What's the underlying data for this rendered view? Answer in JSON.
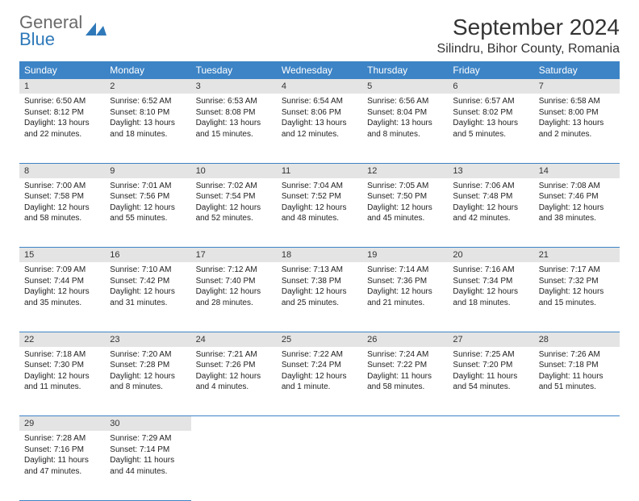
{
  "logo": {
    "line1": "General",
    "line2": "Blue"
  },
  "title": "September 2024",
  "location": "Silindru, Bihor County, Romania",
  "colors": {
    "header_bg": "#3d84c6",
    "header_text": "#ffffff",
    "daynum_bg": "#e4e4e4",
    "border": "#3d84c6",
    "logo_gray": "#6a6a6a",
    "logo_blue": "#2f79b9",
    "body_text": "#222222"
  },
  "weekdays": [
    "Sunday",
    "Monday",
    "Tuesday",
    "Wednesday",
    "Thursday",
    "Friday",
    "Saturday"
  ],
  "weeks": [
    [
      {
        "n": "1",
        "sr": "Sunrise: 6:50 AM",
        "ss": "Sunset: 8:12 PM",
        "d1": "Daylight: 13 hours",
        "d2": "and 22 minutes."
      },
      {
        "n": "2",
        "sr": "Sunrise: 6:52 AM",
        "ss": "Sunset: 8:10 PM",
        "d1": "Daylight: 13 hours",
        "d2": "and 18 minutes."
      },
      {
        "n": "3",
        "sr": "Sunrise: 6:53 AM",
        "ss": "Sunset: 8:08 PM",
        "d1": "Daylight: 13 hours",
        "d2": "and 15 minutes."
      },
      {
        "n": "4",
        "sr": "Sunrise: 6:54 AM",
        "ss": "Sunset: 8:06 PM",
        "d1": "Daylight: 13 hours",
        "d2": "and 12 minutes."
      },
      {
        "n": "5",
        "sr": "Sunrise: 6:56 AM",
        "ss": "Sunset: 8:04 PM",
        "d1": "Daylight: 13 hours",
        "d2": "and 8 minutes."
      },
      {
        "n": "6",
        "sr": "Sunrise: 6:57 AM",
        "ss": "Sunset: 8:02 PM",
        "d1": "Daylight: 13 hours",
        "d2": "and 5 minutes."
      },
      {
        "n": "7",
        "sr": "Sunrise: 6:58 AM",
        "ss": "Sunset: 8:00 PM",
        "d1": "Daylight: 13 hours",
        "d2": "and 2 minutes."
      }
    ],
    [
      {
        "n": "8",
        "sr": "Sunrise: 7:00 AM",
        "ss": "Sunset: 7:58 PM",
        "d1": "Daylight: 12 hours",
        "d2": "and 58 minutes."
      },
      {
        "n": "9",
        "sr": "Sunrise: 7:01 AM",
        "ss": "Sunset: 7:56 PM",
        "d1": "Daylight: 12 hours",
        "d2": "and 55 minutes."
      },
      {
        "n": "10",
        "sr": "Sunrise: 7:02 AM",
        "ss": "Sunset: 7:54 PM",
        "d1": "Daylight: 12 hours",
        "d2": "and 52 minutes."
      },
      {
        "n": "11",
        "sr": "Sunrise: 7:04 AM",
        "ss": "Sunset: 7:52 PM",
        "d1": "Daylight: 12 hours",
        "d2": "and 48 minutes."
      },
      {
        "n": "12",
        "sr": "Sunrise: 7:05 AM",
        "ss": "Sunset: 7:50 PM",
        "d1": "Daylight: 12 hours",
        "d2": "and 45 minutes."
      },
      {
        "n": "13",
        "sr": "Sunrise: 7:06 AM",
        "ss": "Sunset: 7:48 PM",
        "d1": "Daylight: 12 hours",
        "d2": "and 42 minutes."
      },
      {
        "n": "14",
        "sr": "Sunrise: 7:08 AM",
        "ss": "Sunset: 7:46 PM",
        "d1": "Daylight: 12 hours",
        "d2": "and 38 minutes."
      }
    ],
    [
      {
        "n": "15",
        "sr": "Sunrise: 7:09 AM",
        "ss": "Sunset: 7:44 PM",
        "d1": "Daylight: 12 hours",
        "d2": "and 35 minutes."
      },
      {
        "n": "16",
        "sr": "Sunrise: 7:10 AM",
        "ss": "Sunset: 7:42 PM",
        "d1": "Daylight: 12 hours",
        "d2": "and 31 minutes."
      },
      {
        "n": "17",
        "sr": "Sunrise: 7:12 AM",
        "ss": "Sunset: 7:40 PM",
        "d1": "Daylight: 12 hours",
        "d2": "and 28 minutes."
      },
      {
        "n": "18",
        "sr": "Sunrise: 7:13 AM",
        "ss": "Sunset: 7:38 PM",
        "d1": "Daylight: 12 hours",
        "d2": "and 25 minutes."
      },
      {
        "n": "19",
        "sr": "Sunrise: 7:14 AM",
        "ss": "Sunset: 7:36 PM",
        "d1": "Daylight: 12 hours",
        "d2": "and 21 minutes."
      },
      {
        "n": "20",
        "sr": "Sunrise: 7:16 AM",
        "ss": "Sunset: 7:34 PM",
        "d1": "Daylight: 12 hours",
        "d2": "and 18 minutes."
      },
      {
        "n": "21",
        "sr": "Sunrise: 7:17 AM",
        "ss": "Sunset: 7:32 PM",
        "d1": "Daylight: 12 hours",
        "d2": "and 15 minutes."
      }
    ],
    [
      {
        "n": "22",
        "sr": "Sunrise: 7:18 AM",
        "ss": "Sunset: 7:30 PM",
        "d1": "Daylight: 12 hours",
        "d2": "and 11 minutes."
      },
      {
        "n": "23",
        "sr": "Sunrise: 7:20 AM",
        "ss": "Sunset: 7:28 PM",
        "d1": "Daylight: 12 hours",
        "d2": "and 8 minutes."
      },
      {
        "n": "24",
        "sr": "Sunrise: 7:21 AM",
        "ss": "Sunset: 7:26 PM",
        "d1": "Daylight: 12 hours",
        "d2": "and 4 minutes."
      },
      {
        "n": "25",
        "sr": "Sunrise: 7:22 AM",
        "ss": "Sunset: 7:24 PM",
        "d1": "Daylight: 12 hours",
        "d2": "and 1 minute."
      },
      {
        "n": "26",
        "sr": "Sunrise: 7:24 AM",
        "ss": "Sunset: 7:22 PM",
        "d1": "Daylight: 11 hours",
        "d2": "and 58 minutes."
      },
      {
        "n": "27",
        "sr": "Sunrise: 7:25 AM",
        "ss": "Sunset: 7:20 PM",
        "d1": "Daylight: 11 hours",
        "d2": "and 54 minutes."
      },
      {
        "n": "28",
        "sr": "Sunrise: 7:26 AM",
        "ss": "Sunset: 7:18 PM",
        "d1": "Daylight: 11 hours",
        "d2": "and 51 minutes."
      }
    ],
    [
      {
        "n": "29",
        "sr": "Sunrise: 7:28 AM",
        "ss": "Sunset: 7:16 PM",
        "d1": "Daylight: 11 hours",
        "d2": "and 47 minutes."
      },
      {
        "n": "30",
        "sr": "Sunrise: 7:29 AM",
        "ss": "Sunset: 7:14 PM",
        "d1": "Daylight: 11 hours",
        "d2": "and 44 minutes."
      },
      null,
      null,
      null,
      null,
      null
    ]
  ]
}
